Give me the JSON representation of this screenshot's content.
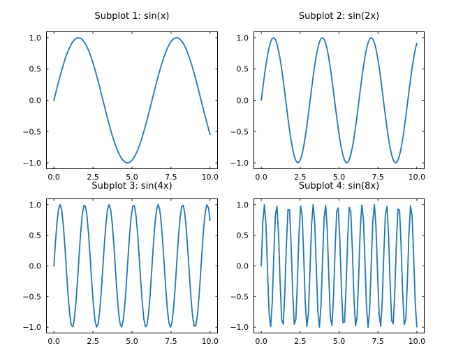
{
  "figure": {
    "background": "#ffffff",
    "axes_color": "#000000",
    "series_color": "#1f77b4",
    "tick_direction": "in",
    "ticks_on_all_sides": true,
    "grid": false,
    "legend": null
  },
  "chart_data": [
    {
      "type": "line",
      "title": "Subplot 1: sin(x)",
      "expression": "sin(1x)",
      "frequency": 1,
      "x_start": 0,
      "x_end": 10,
      "num_points": 100,
      "xlim": [
        -0.5,
        10.5
      ],
      "ylim": [
        -1.1,
        1.1
      ],
      "xticks": [
        0.0,
        2.5,
        5.0,
        7.5,
        10.0
      ],
      "xtick_labels": [
        "0.0",
        "2.5",
        "5.0",
        "7.5",
        "10.0"
      ],
      "yticks": [
        -1.0,
        -0.5,
        0.0,
        0.5,
        1.0
      ],
      "ytick_labels": [
        "−1.0",
        "−0.5",
        "0.0",
        "0.5",
        "1.0"
      ],
      "line_color": "#1f77b4",
      "xlabel": "",
      "ylabel": ""
    },
    {
      "type": "line",
      "title": "Subplot 2: sin(2x)",
      "expression": "sin(2x)",
      "frequency": 2,
      "x_start": 0,
      "x_end": 10,
      "num_points": 100,
      "xlim": [
        -0.5,
        10.5
      ],
      "ylim": [
        -1.1,
        1.1
      ],
      "xticks": [
        0.0,
        2.5,
        5.0,
        7.5,
        10.0
      ],
      "xtick_labels": [
        "0.0",
        "2.5",
        "5.0",
        "7.5",
        "10.0"
      ],
      "yticks": [
        -1.0,
        -0.5,
        0.0,
        0.5,
        1.0
      ],
      "ytick_labels": [
        "−1.0",
        "−0.5",
        "0.0",
        "0.5",
        "1.0"
      ],
      "line_color": "#1f77b4",
      "xlabel": "",
      "ylabel": ""
    },
    {
      "type": "line",
      "title": "Subplot 3: sin(4x)",
      "expression": "sin(4x)",
      "frequency": 4,
      "x_start": 0,
      "x_end": 10,
      "num_points": 100,
      "xlim": [
        -0.5,
        10.5
      ],
      "ylim": [
        -1.1,
        1.1
      ],
      "xticks": [
        0.0,
        2.5,
        5.0,
        7.5,
        10.0
      ],
      "xtick_labels": [
        "0.0",
        "2.5",
        "5.0",
        "7.5",
        "10.0"
      ],
      "yticks": [
        -1.0,
        -0.5,
        0.0,
        0.5,
        1.0
      ],
      "ytick_labels": [
        "−1.0",
        "−0.5",
        "0.0",
        "0.5",
        "1.0"
      ],
      "line_color": "#1f77b4",
      "xlabel": "",
      "ylabel": ""
    },
    {
      "type": "line",
      "title": "Subplot 4: sin(8x)",
      "expression": "sin(8x)",
      "frequency": 8,
      "x_start": 0,
      "x_end": 10,
      "num_points": 100,
      "xlim": [
        -0.5,
        10.5
      ],
      "ylim": [
        -1.1,
        1.1
      ],
      "xticks": [
        0.0,
        2.5,
        5.0,
        7.5,
        10.0
      ],
      "xtick_labels": [
        "0.0",
        "2.5",
        "5.0",
        "7.5",
        "10.0"
      ],
      "yticks": [
        -1.0,
        -0.5,
        0.0,
        0.5,
        1.0
      ],
      "ytick_labels": [
        "−1.0",
        "−0.5",
        "0.0",
        "0.5",
        "1.0"
      ],
      "line_color": "#1f77b4",
      "xlabel": "",
      "ylabel": ""
    }
  ]
}
